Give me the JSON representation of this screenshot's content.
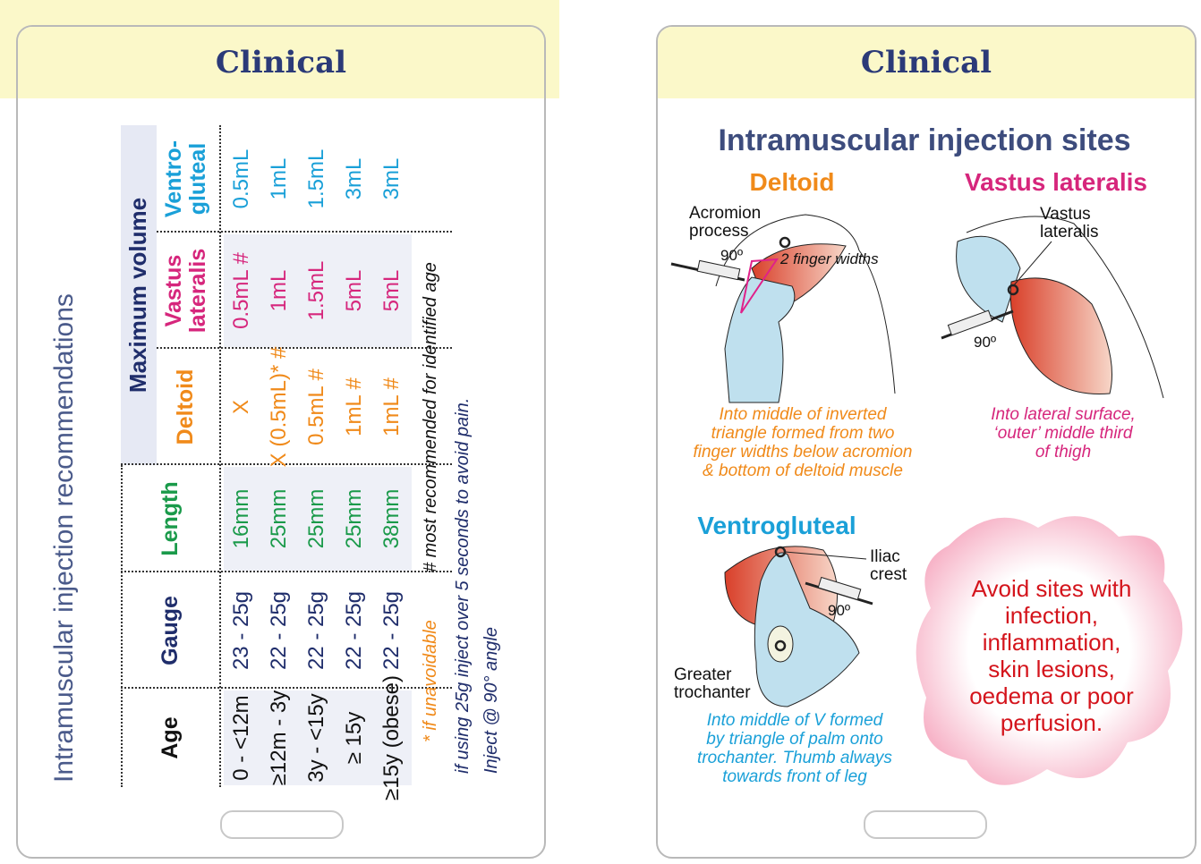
{
  "left_card": {
    "header": "Clinical",
    "title": "Intramuscular injection recommendations",
    "table": {
      "group_header": "Maximum volume",
      "columns": [
        "Age",
        "Gauge",
        "Length",
        "Deltoid",
        "Vastus lateralis",
        "Ventro-gluteal"
      ],
      "rows": [
        [
          "0 - <12m",
          "23 - 25g",
          "16mm",
          "X",
          "0.5mL #",
          "0.5mL"
        ],
        [
          "≥12m - 3y",
          "22 - 25g",
          "25mm",
          "X (0.5mL)* #",
          "1mL",
          "1mL"
        ],
        [
          "3y - <15y",
          "22 - 25g",
          "25mm",
          "0.5mL #",
          "1.5mL",
          "1.5mL"
        ],
        [
          "≥ 15y",
          "22 - 25g",
          "25mm",
          "1mL #",
          "5mL",
          "3mL"
        ],
        [
          "≥15y (obese)",
          "22 - 25g",
          "38mm",
          "1mL #",
          "5mL",
          "3mL"
        ]
      ]
    },
    "notes": {
      "unavoidable": "* if unavoidable",
      "recommended": "# most recommended for identified age",
      "gauge_tip": "if using 25g inject over 5 seconds to avoid pain.",
      "angle": "Inject @ 90° angle"
    }
  },
  "right_card": {
    "header": "Clinical",
    "title": "Intramuscular injection sites",
    "deltoid": {
      "heading": "Deltoid",
      "label_acromion": "Acromion process",
      "label_angle": "90º",
      "label_fingers": "2 finger widths",
      "caption": [
        "Into middle of inverted",
        "triangle formed from two",
        "finger widths below acromion",
        "& bottom of deltoid muscle"
      ]
    },
    "vastus": {
      "heading": "Vastus lateralis",
      "label_muscle": "Vastus lateralis",
      "label_angle": "90º",
      "caption": [
        "Into lateral surface,",
        "‘outer’ middle third",
        "of thigh"
      ]
    },
    "ventrogluteal": {
      "heading": "Ventrogluteal",
      "label_iliac": "Iliac crest",
      "label_angle": "90º",
      "label_trochanter": "Greater trochanter",
      "caption": [
        "Into middle of V formed",
        "by triangle of palm onto",
        "trochanter.  Thumb always",
        "towards front of leg"
      ]
    },
    "warning": [
      "Avoid sites with",
      "infection,",
      "inflammation,",
      "skin lesions,",
      "oedema or poor",
      "perfusion."
    ]
  }
}
